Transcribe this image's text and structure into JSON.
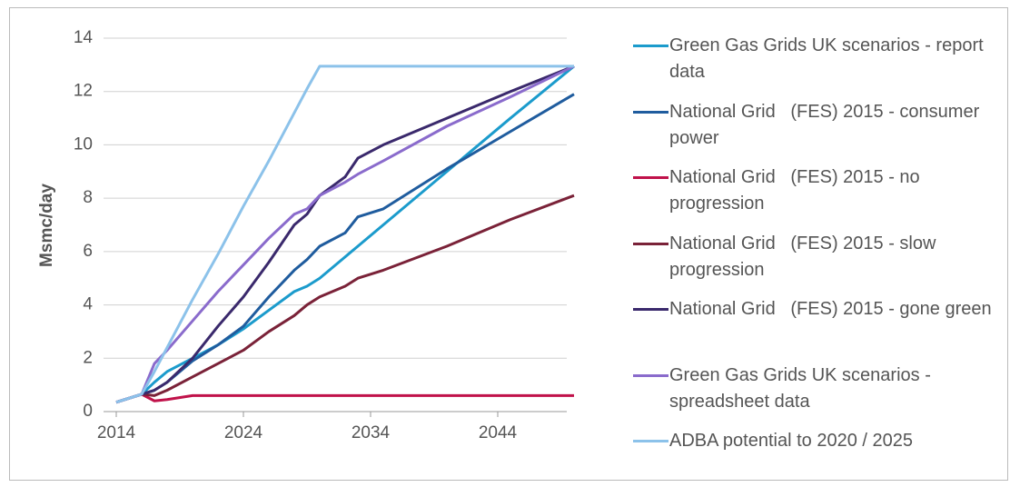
{
  "chart_data": {
    "type": "line",
    "y_label": "Msmc/day",
    "x": [
      2014,
      2016,
      2017,
      2018,
      2020,
      2022,
      2024,
      2026,
      2028,
      2029,
      2030,
      2032,
      2033,
      2035,
      2040,
      2045,
      2050
    ],
    "xlim": [
      2013,
      2050
    ],
    "xticks": [
      2014,
      2024,
      2034,
      2044
    ],
    "ylim": [
      0,
      14
    ],
    "yticks": [
      0,
      2,
      4,
      6,
      8,
      10,
      12,
      14
    ],
    "grid": true,
    "legend": "right",
    "series": [
      {
        "name": "Green Gas Grids UK scenarios - report data",
        "color": "#1b9bcc",
        "values": [
          0.35,
          0.65,
          1.1,
          1.5,
          2.0,
          2.5,
          3.1,
          3.8,
          4.5,
          4.7,
          5.0,
          5.8,
          6.2,
          7.0,
          9.0,
          11.0,
          12.95
        ]
      },
      {
        "name": "National Grid   (FES) 2015 - consumer power",
        "color": "#1f5c9e",
        "values": [
          0.35,
          0.65,
          0.8,
          1.1,
          1.9,
          2.5,
          3.2,
          4.3,
          5.3,
          5.7,
          6.2,
          6.7,
          7.3,
          7.6,
          9.1,
          10.5,
          11.9
        ]
      },
      {
        "name": "National Grid   (FES) 2015 - no progression",
        "color": "#c0124a",
        "values": [
          0.35,
          0.65,
          0.4,
          0.45,
          0.6,
          0.6,
          0.6,
          0.6,
          0.6,
          0.6,
          0.6,
          0.6,
          0.6,
          0.6,
          0.6,
          0.6,
          0.6
        ]
      },
      {
        "name": "National Grid   (FES) 2015 - slow progression",
        "color": "#7a2238",
        "values": [
          0.35,
          0.65,
          0.6,
          0.8,
          1.3,
          1.8,
          2.3,
          3.0,
          3.6,
          4.0,
          4.3,
          4.7,
          5.0,
          5.3,
          6.2,
          7.2,
          8.1
        ]
      },
      {
        "name": "National Grid   (FES) 2015 - gone green",
        "color": "#3a296c",
        "values": [
          0.35,
          0.65,
          0.8,
          1.1,
          2.0,
          3.2,
          4.3,
          5.6,
          7.0,
          7.4,
          8.1,
          8.8,
          9.5,
          10.0,
          11.0,
          12.0,
          12.95
        ]
      },
      {
        "name": "Green Gas Grids UK scenarios - spreadsheet data",
        "color": "#8a6bcc",
        "values": [
          0.35,
          0.65,
          1.8,
          2.3,
          3.4,
          4.5,
          5.5,
          6.5,
          7.4,
          7.6,
          8.1,
          8.6,
          8.9,
          9.4,
          10.7,
          11.8,
          12.95
        ]
      },
      {
        "name": "ADBA potential to 2020 / 2025",
        "color": "#8cc2ea",
        "values": [
          0.35,
          0.65,
          1.5,
          2.4,
          4.2,
          5.9,
          7.7,
          9.4,
          11.2,
          12.1,
          12.95,
          12.95,
          12.95,
          12.95,
          12.95,
          12.95,
          12.95
        ]
      }
    ]
  }
}
